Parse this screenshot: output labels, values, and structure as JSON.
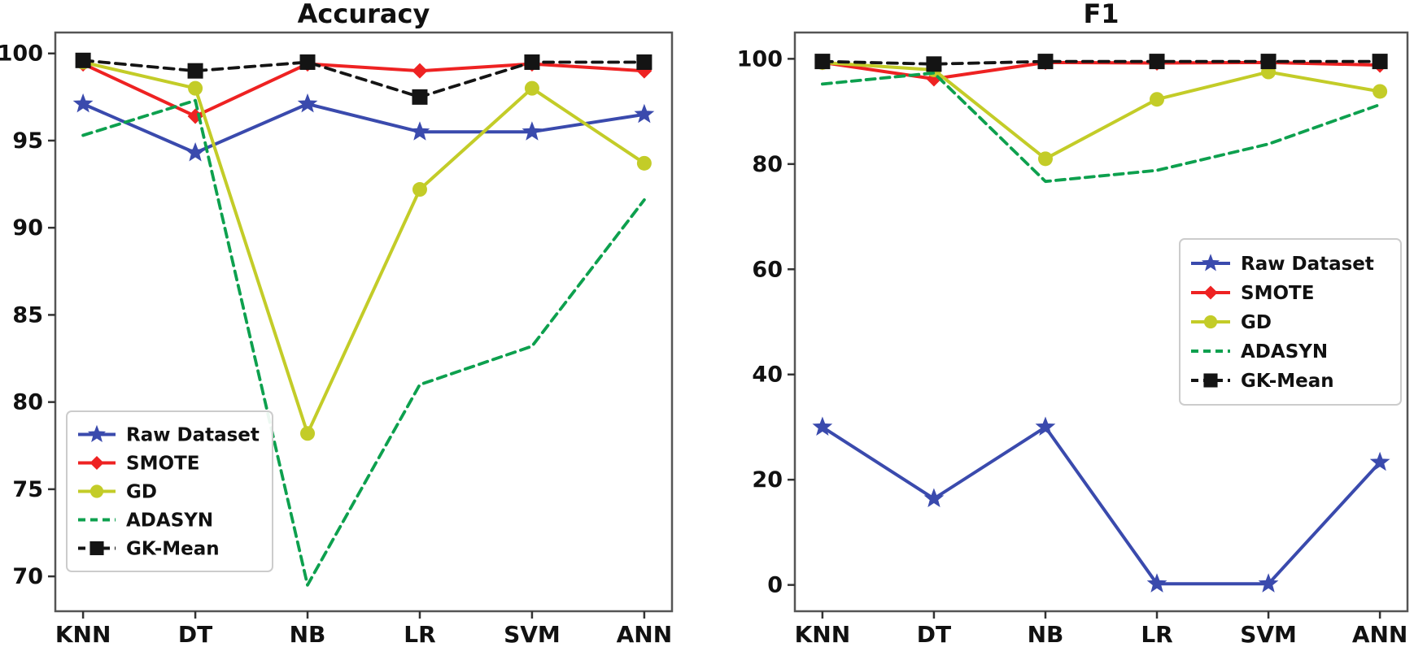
{
  "figure": {
    "background": "#ffffff",
    "spine_color": "#555555",
    "tick_color": "#333333",
    "text_color": "#111111",
    "legend_border_color": "#cccccc",
    "legend_background": "#ffffff"
  },
  "chart_data": [
    {
      "type": "line",
      "title": "Accuracy",
      "xlabel": "",
      "ylabel": "",
      "grid": false,
      "legend_position": "lower-left",
      "categories": [
        "KNN",
        "DT",
        "NB",
        "LR",
        "SVM",
        "ANN"
      ],
      "ylim": [
        68,
        101.2
      ],
      "yticks": [
        100,
        95,
        90,
        85,
        80,
        75,
        70
      ],
      "series": [
        {
          "name": "Raw Dataset",
          "color": "#3a4aad",
          "marker": "star",
          "line": "solid",
          "values": [
            97.1,
            94.3,
            97.1,
            95.5,
            95.5,
            96.5
          ]
        },
        {
          "name": "SMOTE",
          "color": "#ee2222",
          "marker": "diamond",
          "line": "solid",
          "values": [
            99.4,
            96.4,
            99.4,
            99.0,
            99.4,
            99.0
          ]
        },
        {
          "name": "GD",
          "color": "#c3cc28",
          "marker": "circle",
          "line": "solid",
          "values": [
            99.5,
            98.0,
            78.2,
            92.2,
            98.0,
            93.7
          ]
        },
        {
          "name": "ADASYN",
          "color": "#0da04e",
          "marker": "none",
          "line": "dashed",
          "values": [
            95.3,
            97.3,
            69.5,
            81.0,
            83.2,
            91.6
          ]
        },
        {
          "name": "GK-Mean",
          "color": "#141414",
          "marker": "square",
          "line": "dashed",
          "values": [
            99.6,
            99.0,
            99.5,
            97.5,
            99.5,
            99.5
          ]
        }
      ]
    },
    {
      "type": "line",
      "title": "F1",
      "xlabel": "",
      "ylabel": "",
      "grid": false,
      "legend_position": "center-right",
      "categories": [
        "KNN",
        "DT",
        "NB",
        "LR",
        "SVM",
        "ANN"
      ],
      "ylim": [
        -5,
        105
      ],
      "yticks": [
        100,
        80,
        60,
        40,
        20,
        0
      ],
      "series": [
        {
          "name": "Raw Dataset",
          "color": "#3a4aad",
          "marker": "star",
          "line": "solid",
          "values": [
            30.0,
            16.4,
            30.0,
            0.2,
            0.2,
            23.3
          ]
        },
        {
          "name": "SMOTE",
          "color": "#ee2222",
          "marker": "diamond",
          "line": "solid",
          "values": [
            99.3,
            96.2,
            99.3,
            99.2,
            99.3,
            98.8
          ]
        },
        {
          "name": "GD",
          "color": "#c3cc28",
          "marker": "circle",
          "line": "solid",
          "values": [
            99.3,
            97.9,
            81.0,
            92.3,
            97.5,
            93.8
          ]
        },
        {
          "name": "ADASYN",
          "color": "#0da04e",
          "marker": "none",
          "line": "dashed",
          "values": [
            95.2,
            97.3,
            76.7,
            78.8,
            83.8,
            91.3
          ]
        },
        {
          "name": "GK-Mean",
          "color": "#141414",
          "marker": "square",
          "line": "dashed",
          "values": [
            99.5,
            99.0,
            99.5,
            99.5,
            99.5,
            99.5
          ]
        }
      ]
    }
  ]
}
